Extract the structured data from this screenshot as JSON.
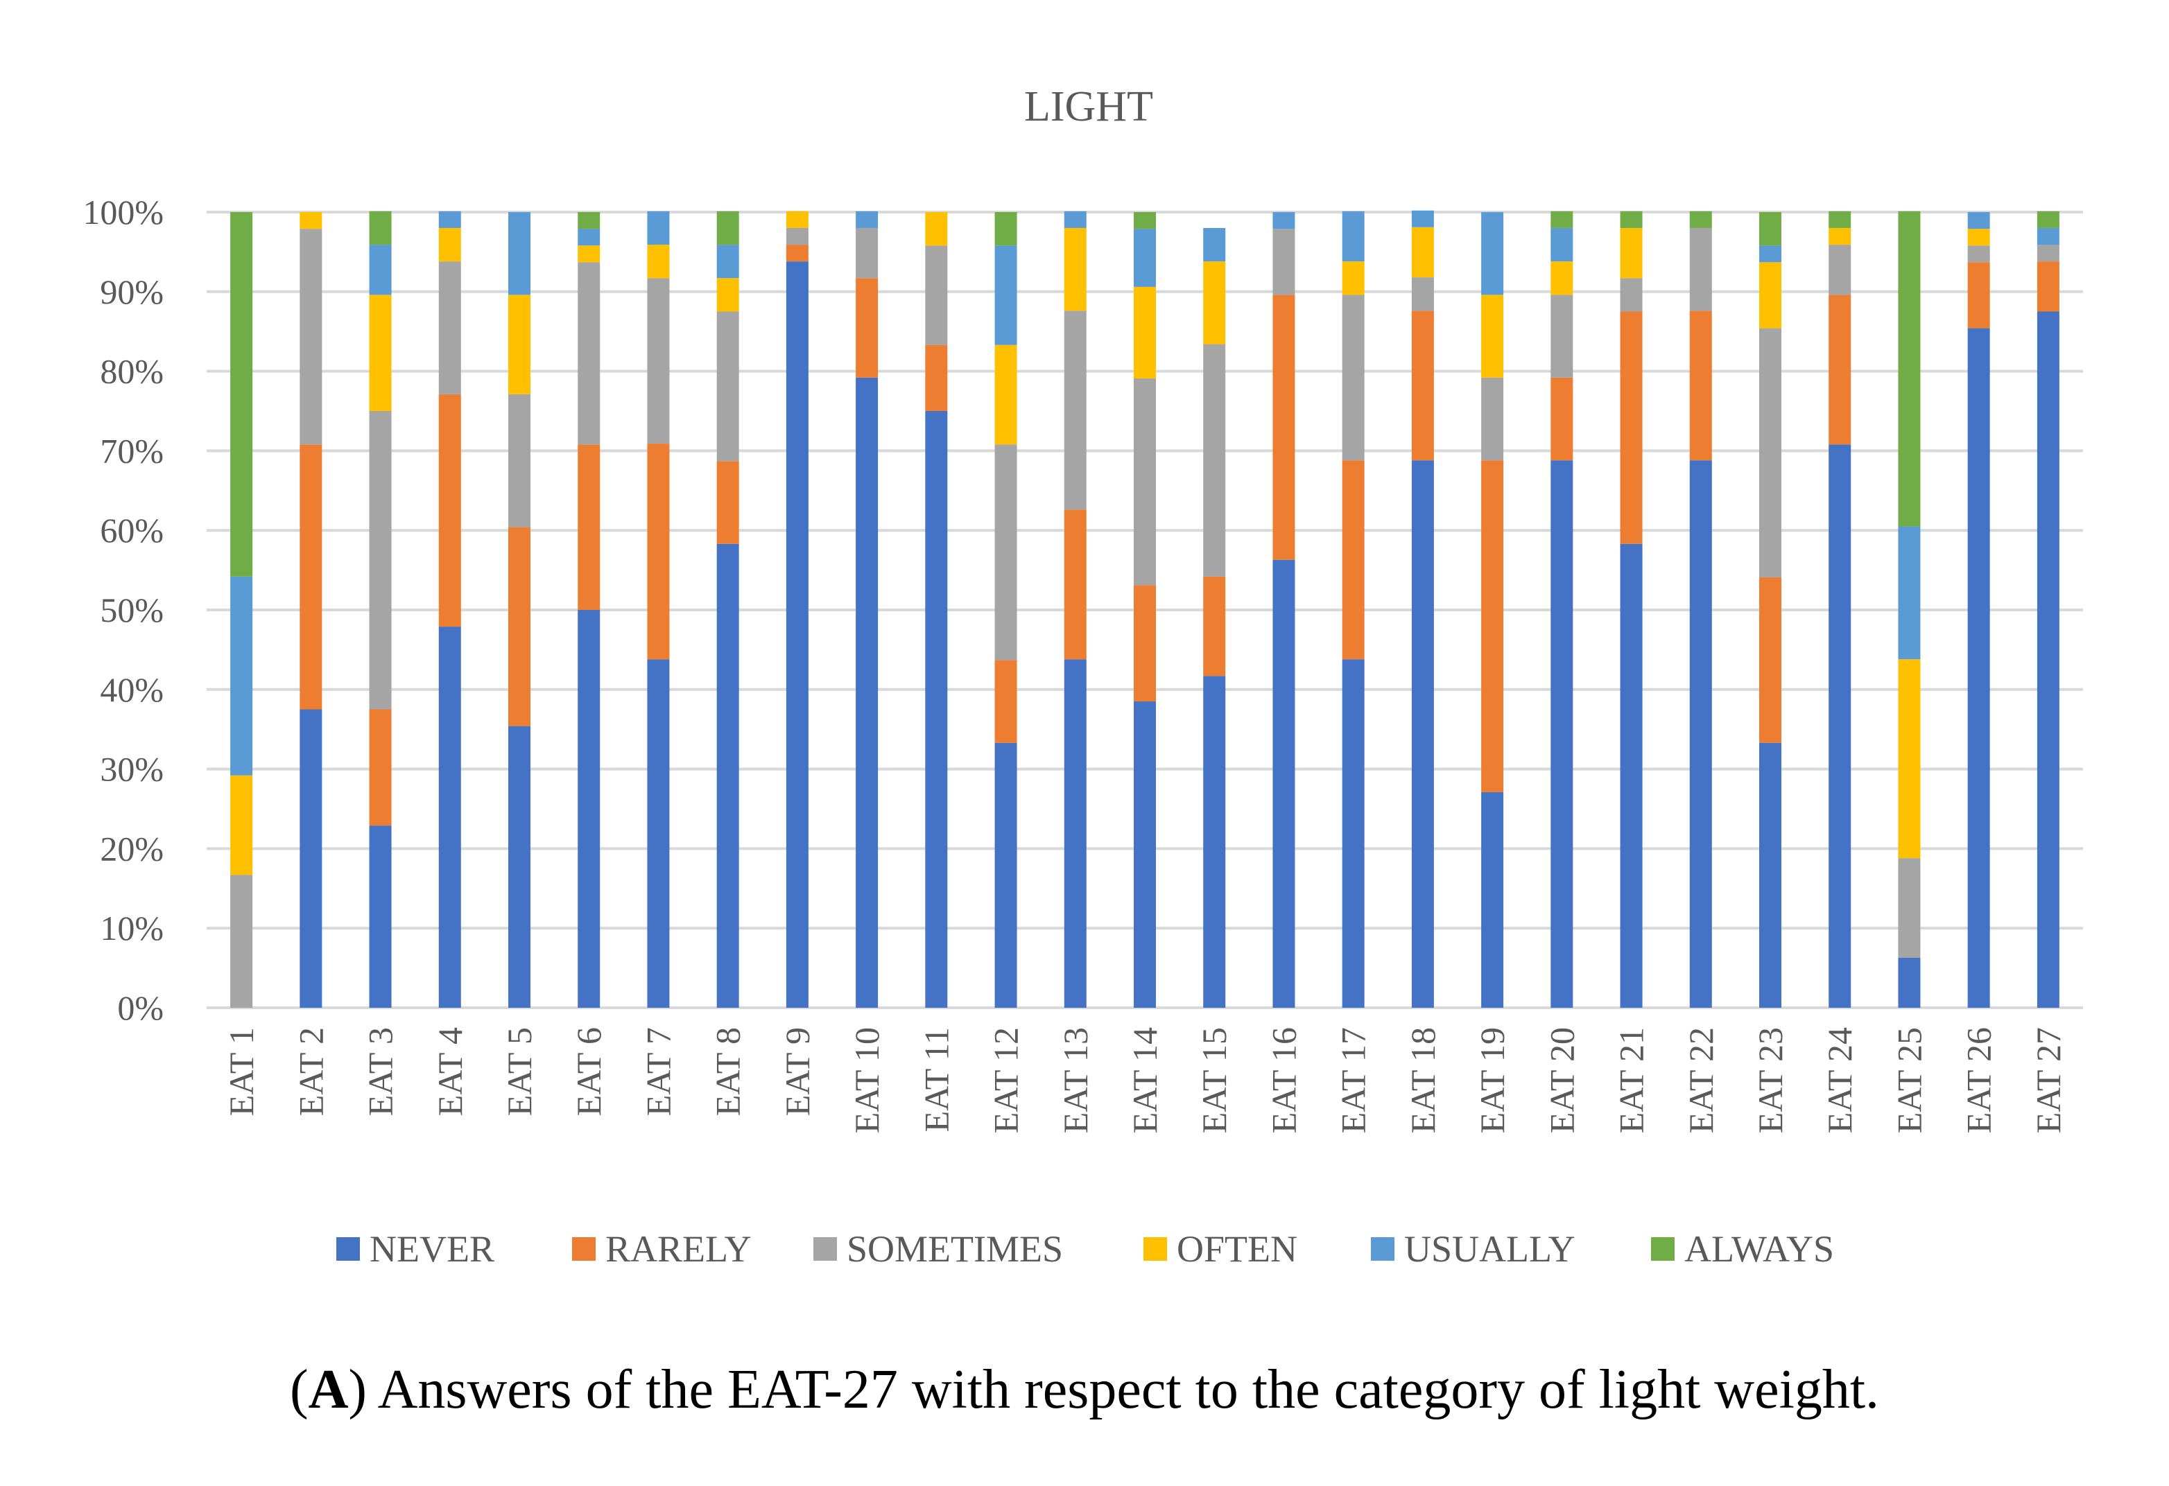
{
  "chart_data": {
    "type": "bar",
    "stacked": true,
    "percent": true,
    "title": "LIGHT",
    "xlabel": "",
    "ylabel": "",
    "ylim": [
      0,
      100
    ],
    "yticks": [
      "0%",
      "10%",
      "20%",
      "30%",
      "40%",
      "50%",
      "60%",
      "70%",
      "80%",
      "90%",
      "100%"
    ],
    "grid": true,
    "legend_position": "bottom",
    "categories": [
      "EAT 1",
      "EAT 2",
      "EAT 3",
      "EAT 4",
      "EAT 5",
      "EAT 6",
      "EAT 7",
      "EAT 8",
      "EAT 9",
      "EAT 10",
      "EAT 11",
      "EAT 12",
      "EAT 13",
      "EAT 14",
      "EAT 15",
      "EAT 16",
      "EAT 17",
      "EAT 18",
      "EAT 19",
      "EAT 20",
      "EAT 21",
      "EAT 22",
      "EAT 23",
      "EAT 24",
      "EAT 25",
      "EAT 26",
      "EAT 27"
    ],
    "series": [
      {
        "name": "NEVER",
        "color": "#4472C4",
        "values": [
          0,
          37.5,
          22.9,
          47.9,
          35.4,
          50.0,
          43.8,
          58.3,
          93.8,
          79.2,
          75.0,
          33.3,
          43.8,
          38.5,
          41.7,
          56.3,
          43.8,
          68.8,
          27.1,
          68.8,
          58.3,
          68.8,
          33.3,
          70.8,
          6.3,
          85.4,
          87.5
        ]
      },
      {
        "name": "RARELY",
        "color": "#ED7D31",
        "values": [
          0,
          33.3,
          14.6,
          29.2,
          25.0,
          20.8,
          27.1,
          10.4,
          2.1,
          12.5,
          8.3,
          10.4,
          18.8,
          14.6,
          12.5,
          33.3,
          25.0,
          18.8,
          41.7,
          10.4,
          29.2,
          18.8,
          20.8,
          18.8,
          0,
          8.3,
          6.3
        ]
      },
      {
        "name": "SOMETIMES",
        "color": "#A5A5A5",
        "values": [
          16.7,
          27.1,
          37.5,
          16.7,
          16.7,
          22.9,
          20.8,
          18.8,
          2.1,
          6.3,
          12.5,
          27.1,
          25.0,
          26.0,
          29.2,
          8.3,
          20.8,
          4.2,
          10.4,
          10.4,
          4.2,
          10.4,
          31.3,
          6.3,
          12.5,
          2.1,
          2.1
        ]
      },
      {
        "name": "OFTEN",
        "color": "#FFC000",
        "values": [
          12.5,
          2.1,
          14.6,
          4.2,
          12.5,
          2.1,
          4.2,
          4.2,
          2.1,
          0,
          4.2,
          12.5,
          10.4,
          11.5,
          10.4,
          0,
          4.2,
          6.3,
          10.4,
          4.2,
          6.3,
          0,
          8.3,
          2.1,
          25.0,
          2.1,
          0
        ]
      },
      {
        "name": "USUALLY",
        "color": "#5B9BD5",
        "values": [
          25.0,
          0,
          6.3,
          2.1,
          10.4,
          2.1,
          4.2,
          4.2,
          0,
          2.1,
          0,
          12.5,
          2.1,
          7.3,
          4.2,
          2.1,
          6.3,
          2.1,
          10.4,
          4.2,
          0,
          0,
          2.1,
          0,
          16.7,
          2.1,
          2.1
        ]
      },
      {
        "name": "ALWAYS",
        "color": "#70AD47",
        "values": [
          45.8,
          0,
          4.2,
          0,
          0,
          2.1,
          0,
          4.2,
          0,
          0,
          0,
          4.2,
          0,
          2.1,
          0,
          0,
          0,
          0,
          0,
          2.1,
          2.1,
          2.1,
          4.2,
          2.1,
          39.6,
          0,
          2.1
        ]
      }
    ]
  },
  "caption": {
    "label": "A",
    "text": "Answers of the EAT-27 with respect to the category of light weight."
  }
}
